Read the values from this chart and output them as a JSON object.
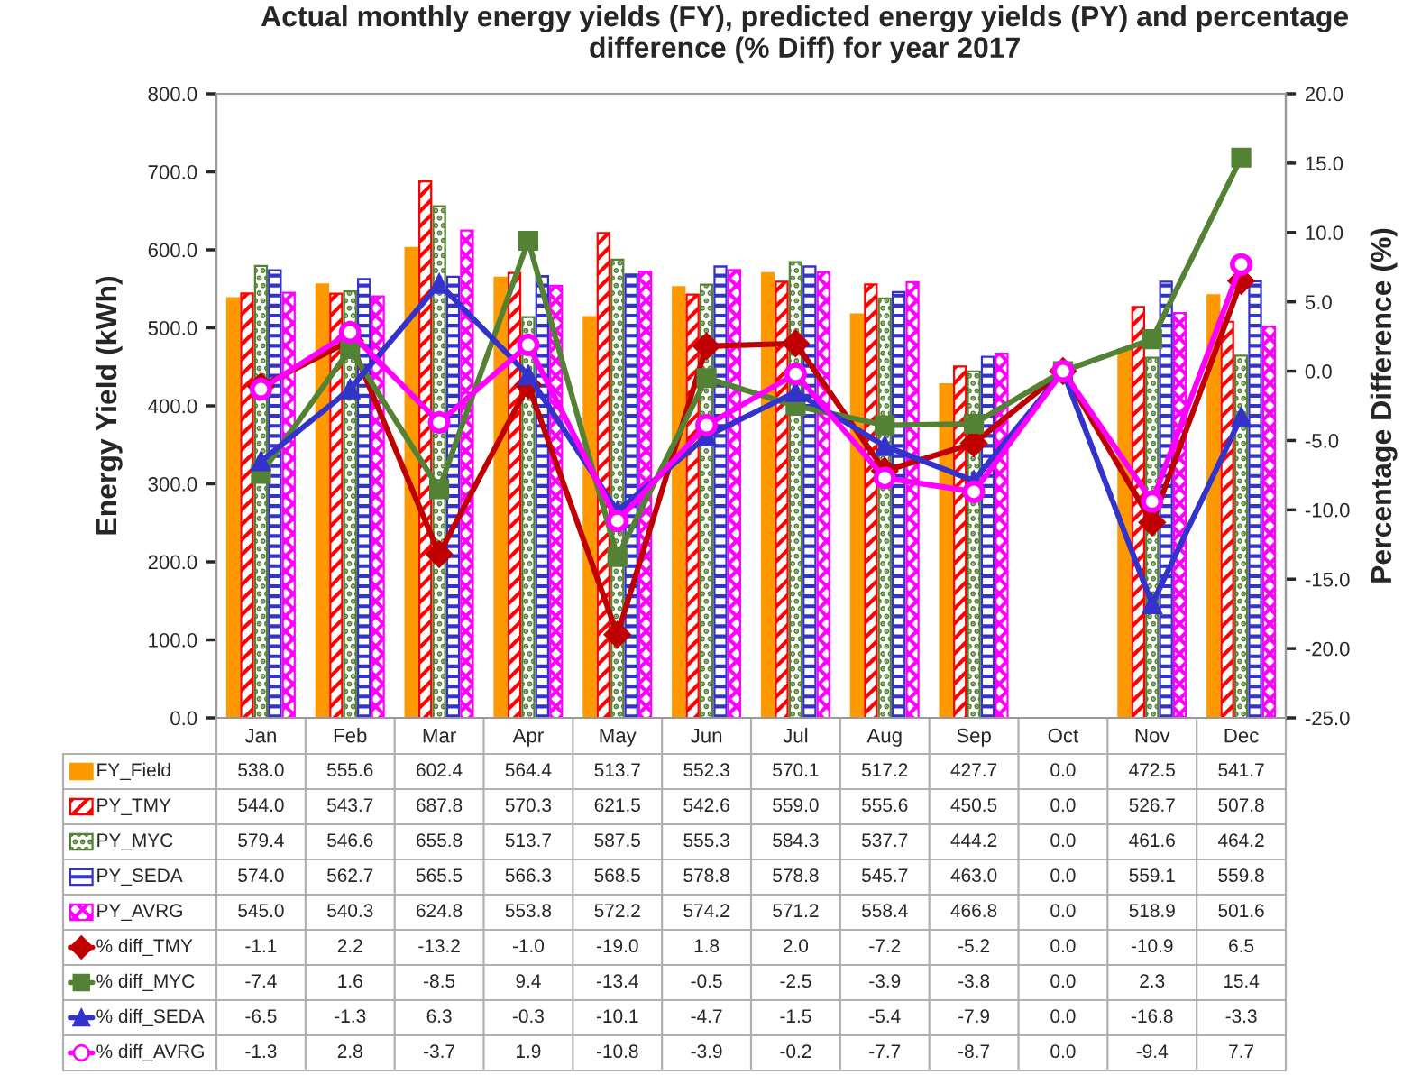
{
  "chart_data": {
    "type": "bar",
    "title": "Actual monthly energy yields (FY), predicted energy yields (PY) and percentage difference (% Diff) for year 2017",
    "ylabel": "Energy Yield (kWh)",
    "y2label": "Percentage Difference (%)",
    "categories": [
      "Jan",
      "Feb",
      "Mar",
      "Apr",
      "May",
      "Jun",
      "Jul",
      "Aug",
      "Sep",
      "Oct",
      "Nov",
      "Dec"
    ],
    "ylim": [
      0,
      800
    ],
    "yticks": [
      {
        "value": 0,
        "label": "0.0"
      },
      {
        "value": 100,
        "label": "100.0"
      },
      {
        "value": 200,
        "label": "200.0"
      },
      {
        "value": 300,
        "label": "300.0"
      },
      {
        "value": 400,
        "label": "400.0"
      },
      {
        "value": 500,
        "label": "500.0"
      },
      {
        "value": 600,
        "label": "600.0"
      },
      {
        "value": 700,
        "label": "700.0"
      },
      {
        "value": 800,
        "label": "800.0"
      }
    ],
    "y2lim": [
      -25,
      20
    ],
    "y2ticks": [
      {
        "value": -25,
        "label": "-25.0"
      },
      {
        "value": -20,
        "label": "-20.0"
      },
      {
        "value": -15,
        "label": "-15.0"
      },
      {
        "value": -10,
        "label": "-10.0"
      },
      {
        "value": -5,
        "label": "-5.0"
      },
      {
        "value": 0,
        "label": "0.0"
      },
      {
        "value": 5,
        "label": "5.0"
      },
      {
        "value": 10,
        "label": "10.0"
      },
      {
        "value": 15,
        "label": "15.0"
      },
      {
        "value": 20,
        "label": "20.0"
      }
    ],
    "grid": false,
    "legend": "bottom",
    "series": [
      {
        "name": "FY_Field",
        "color": "#ff9900",
        "values": [
          538.0,
          555.6,
          602.4,
          564.4,
          513.7,
          552.3,
          570.1,
          517.2,
          427.7,
          0.0,
          472.5,
          541.7
        ],
        "value_labels": [
          "538.0",
          "555.6",
          "602.4",
          "564.4",
          "513.7",
          "552.3",
          "570.1",
          "517.2",
          "427.7",
          "0.0",
          "472.5",
          "541.7"
        ]
      },
      {
        "name": "PY_TMY",
        "color": "#ff0000",
        "values": [
          544.0,
          543.7,
          687.8,
          570.3,
          621.5,
          542.6,
          559.0,
          555.6,
          450.5,
          0.0,
          526.7,
          507.8
        ],
        "value_labels": [
          "544.0",
          "543.7",
          "687.8",
          "570.3",
          "621.5",
          "542.6",
          "559.0",
          "555.6",
          "450.5",
          "0.0",
          "526.7",
          "507.8"
        ]
      },
      {
        "name": "PY_MYC",
        "color": "#548235",
        "values": [
          579.4,
          546.6,
          655.8,
          513.7,
          587.5,
          555.3,
          584.3,
          537.7,
          444.2,
          0.0,
          461.6,
          464.2
        ],
        "value_labels": [
          "579.4",
          "546.6",
          "655.8",
          "513.7",
          "587.5",
          "555.3",
          "584.3",
          "537.7",
          "444.2",
          "0.0",
          "461.6",
          "464.2"
        ]
      },
      {
        "name": "PY_SEDA",
        "color": "#3333cc",
        "values": [
          574.0,
          562.7,
          565.5,
          566.3,
          568.5,
          578.8,
          578.8,
          545.7,
          463.0,
          0.0,
          559.1,
          559.8
        ],
        "value_labels": [
          "574.0",
          "562.7",
          "565.5",
          "566.3",
          "568.5",
          "578.8",
          "578.8",
          "545.7",
          "463.0",
          "0.0",
          "559.1",
          "559.8"
        ]
      },
      {
        "name": "PY_AVRG",
        "color": "#ff00ff",
        "values": [
          545.0,
          540.3,
          624.8,
          553.8,
          572.2,
          574.2,
          571.2,
          558.4,
          466.8,
          0.0,
          518.9,
          501.6
        ],
        "value_labels": [
          "545.0",
          "540.3",
          "624.8",
          "553.8",
          "572.2",
          "574.2",
          "571.2",
          "558.4",
          "466.8",
          "0.0",
          "518.9",
          "501.6"
        ]
      },
      {
        "name": "% diff_TMY",
        "type": "line",
        "axis": "y2",
        "marker": "diamond",
        "color": "#c00000",
        "values": [
          -1.1,
          2.2,
          -13.2,
          -1.0,
          -19.0,
          1.8,
          2.0,
          -7.2,
          -5.2,
          0.0,
          -10.9,
          6.5
        ],
        "value_labels": [
          "-1.1",
          "2.2",
          "-13.2",
          "-1.0",
          "-19.0",
          "1.8",
          "2.0",
          "-7.2",
          "-5.2",
          "0.0",
          "-10.9",
          "6.5"
        ]
      },
      {
        "name": "% diff_MYC",
        "type": "line",
        "axis": "y2",
        "marker": "square",
        "color": "#548235",
        "values": [
          -7.4,
          1.6,
          -8.5,
          9.4,
          -13.4,
          -0.5,
          -2.5,
          -3.9,
          -3.8,
          0.0,
          2.3,
          15.4
        ],
        "value_labels": [
          "-7.4",
          "1.6",
          "-8.5",
          "9.4",
          "-13.4",
          "-0.5",
          "-2.5",
          "-3.9",
          "-3.8",
          "0.0",
          "2.3",
          "15.4"
        ]
      },
      {
        "name": "% diff_SEDA",
        "type": "line",
        "axis": "y2",
        "marker": "triangle",
        "color": "#3333cc",
        "values": [
          -6.5,
          -1.3,
          6.3,
          -0.3,
          -10.1,
          -4.7,
          -1.5,
          -5.4,
          -7.9,
          0.0,
          -16.8,
          -3.3
        ],
        "value_labels": [
          "-6.5",
          "-1.3",
          "6.3",
          "-0.3",
          "-10.1",
          "-4.7",
          "-1.5",
          "-5.4",
          "-7.9",
          "0.0",
          "-16.8",
          "-3.3"
        ]
      },
      {
        "name": "% diff_AVRG",
        "type": "line",
        "axis": "y2",
        "marker": "circle",
        "color": "#ff00ff",
        "values": [
          -1.3,
          2.8,
          -3.7,
          1.9,
          -10.8,
          -3.9,
          -0.2,
          -7.7,
          -8.7,
          0.0,
          -9.4,
          7.7
        ],
        "value_labels": [
          "-1.3",
          "2.8",
          "-3.7",
          "1.9",
          "-10.8",
          "-3.9",
          "-0.2",
          "-7.7",
          "-8.7",
          "0.0",
          "-9.4",
          "7.7"
        ]
      }
    ]
  }
}
